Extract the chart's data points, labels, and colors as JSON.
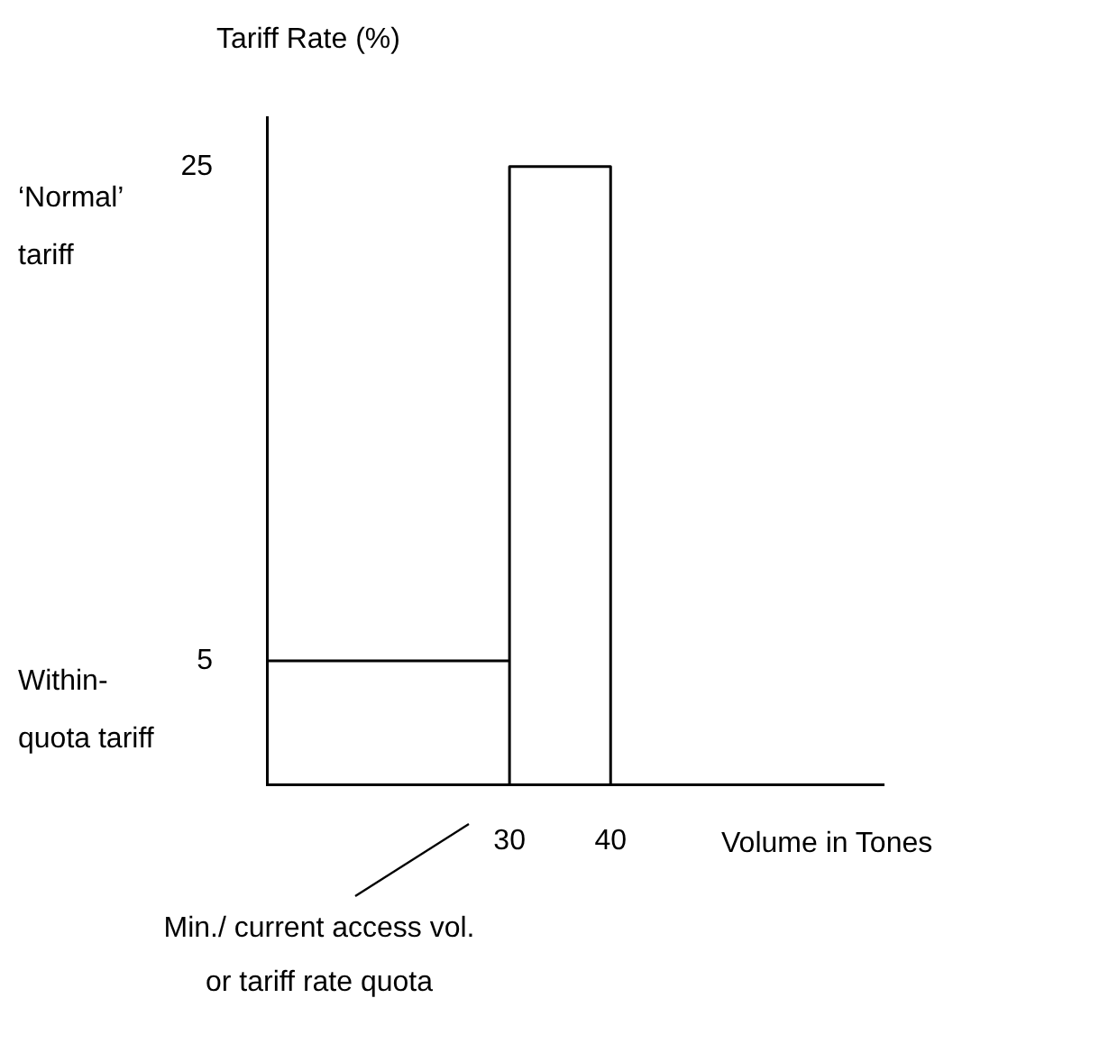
{
  "chart_data": {
    "type": "line",
    "ylabel": "Tariff Rate (%)",
    "xlabel": "Volume in Tones",
    "series": [
      {
        "color": "#000000",
        "x": [
          6,
          30
        ],
        "values": [
          5,
          5
        ]
      },
      {
        "color": "#000000",
        "x": [
          30,
          30,
          40,
          40
        ],
        "values": [
          0,
          25,
          25,
          0
        ]
      }
    ],
    "xlim": [
      6,
      67
    ],
    "xticks": [
      30,
      40
    ],
    "ylim": [
      0,
      27
    ],
    "yticks": [
      5,
      25
    ],
    "grid": false,
    "legend": false,
    "marker": "none",
    "line_style": "solid",
    "annotations": [
      "‘Normal’ tariff",
      "Within-quota tariff",
      "Min./ current access vol. or tariff rate quota"
    ]
  }
}
